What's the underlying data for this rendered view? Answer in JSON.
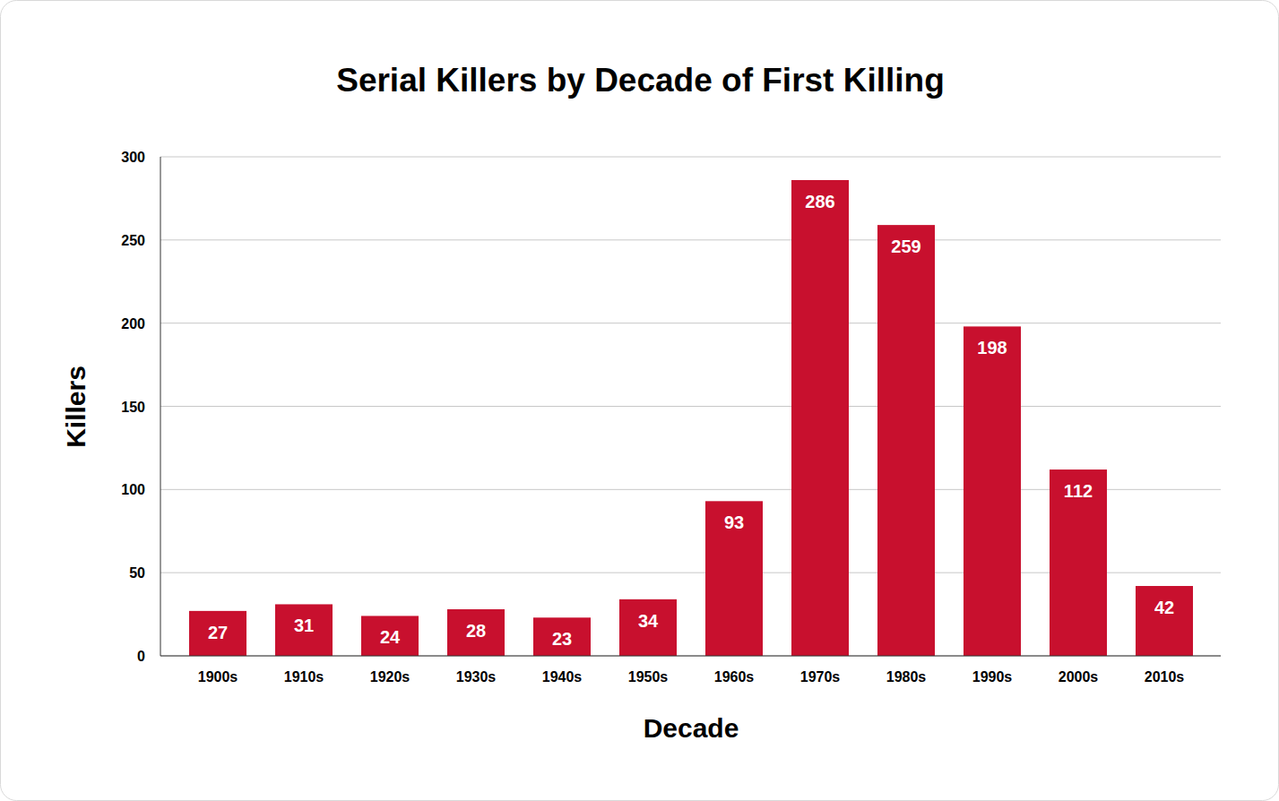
{
  "chart_data": {
    "type": "bar",
    "title": "Serial Killers by Decade of First Killing",
    "xlabel": "Decade",
    "ylabel": "Killers",
    "categories": [
      "1900s",
      "1910s",
      "1920s",
      "1930s",
      "1940s",
      "1950s",
      "1960s",
      "1970s",
      "1980s",
      "1990s",
      "2000s",
      "2010s"
    ],
    "values": [
      27,
      31,
      24,
      28,
      23,
      34,
      93,
      286,
      259,
      198,
      112,
      42
    ],
    "color": "#c8102e",
    "ylim": [
      0,
      300
    ],
    "yticks": [
      0,
      50,
      100,
      150,
      200,
      250,
      300
    ],
    "grid": true,
    "data_labels": true
  }
}
